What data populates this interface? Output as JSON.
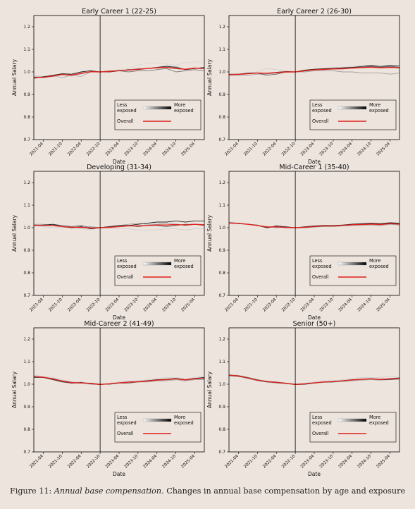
{
  "figure": {
    "caption_label": "Figure 11:",
    "caption_title": "Annual base compensation.",
    "caption_text": "Changes in annual base compensation by age and exposure"
  },
  "legend": {
    "less_line1": "Less",
    "less_line2": "exposed",
    "more_line1": "More",
    "more_line2": "exposed",
    "overall": "Overall",
    "gradient_from": "#ffffff",
    "gradient_to": "#000000",
    "overall_color": "#e0201b"
  },
  "chart_data": [
    {
      "type": "line",
      "title": "Early Career 1 (22-25)",
      "xlabel": "Date",
      "ylabel": "Annual Salary",
      "yticks": [
        "0.7",
        "0.8",
        "0.9",
        "1.0",
        "1.1",
        "1.2"
      ],
      "ylim": [
        0.7,
        1.25
      ],
      "xticks": [
        "2021-04",
        "2021-10",
        "2022-04",
        "2022-10",
        "2023-04",
        "2023-10",
        "2024-04",
        "2024-10",
        "2025-04"
      ],
      "x": [
        "2021-01",
        "2021-04",
        "2021-07",
        "2021-10",
        "2022-01",
        "2022-04",
        "2022-07",
        "2022-10",
        "2023-01",
        "2023-04",
        "2023-07",
        "2023-10",
        "2024-01",
        "2024-04",
        "2024-07",
        "2024-10",
        "2025-01",
        "2025-04",
        "2025-07"
      ],
      "vline": "2022-10",
      "series": [
        {
          "color": "#d8d8d8",
          "values": [
            0.985,
            0.978,
            0.985,
            0.99,
            0.98,
            0.99,
            1.0,
            1.0,
            1.005,
            1.01,
            1.015,
            1.03,
            1.04,
            1.04,
            1.035,
            1.03,
            1.04,
            1.045,
            1.04
          ]
        },
        {
          "color": "#b0b0b0",
          "values": [
            0.978,
            0.98,
            0.982,
            0.975,
            0.985,
            0.98,
            1.0,
            1.0,
            1.0,
            1.005,
            1.01,
            1.015,
            1.015,
            1.02,
            1.02,
            1.025,
            1.01,
            1.015,
            1.015
          ]
        },
        {
          "color": "#7a7a7a",
          "values": [
            0.975,
            0.975,
            0.98,
            0.99,
            0.985,
            0.995,
            1.0,
            1.0,
            1.005,
            1.005,
            1.0,
            1.005,
            1.005,
            1.01,
            1.015,
            1.0,
            1.005,
            1.01,
            1.005
          ]
        },
        {
          "color": "#202020",
          "values": [
            0.972,
            0.978,
            0.985,
            0.992,
            0.99,
            1.0,
            1.005,
            1.0,
            1.0,
            1.005,
            1.01,
            1.01,
            1.015,
            1.02,
            1.025,
            1.02,
            1.01,
            1.015,
            1.02
          ]
        },
        {
          "color": "#e0201b",
          "width": 1.4,
          "values": [
            0.975,
            0.976,
            0.982,
            0.988,
            0.986,
            0.993,
            1.001,
            1.0,
            1.002,
            1.006,
            1.008,
            1.012,
            1.015,
            1.018,
            1.02,
            1.015,
            1.012,
            1.017,
            1.015
          ]
        }
      ]
    },
    {
      "type": "line",
      "title": "Early Career 2 (26-30)",
      "xlabel": "Date",
      "ylabel": "Annual Salary",
      "yticks": [
        "0.7",
        "0.8",
        "0.9",
        "1.0",
        "1.1",
        "1.2"
      ],
      "ylim": [
        0.7,
        1.25
      ],
      "xticks": [
        "2021-04",
        "2021-10",
        "2022-04",
        "2022-10",
        "2023-04",
        "2023-10",
        "2024-04",
        "2024-10",
        "2025-04"
      ],
      "x": [
        "2021-01",
        "2021-04",
        "2021-07",
        "2021-10",
        "2022-01",
        "2022-04",
        "2022-07",
        "2022-10",
        "2023-01",
        "2023-04",
        "2023-07",
        "2023-10",
        "2024-01",
        "2024-04",
        "2024-07",
        "2024-10",
        "2025-01",
        "2025-04",
        "2025-07"
      ],
      "vline": "2022-10",
      "series": [
        {
          "color": "#d0d0d0",
          "values": [
            0.99,
            0.99,
            0.995,
            1.0,
            1.015,
            1.01,
            1.005,
            1.0,
            1.005,
            1.01,
            1.015,
            1.02,
            1.02,
            1.025,
            1.03,
            1.03,
            1.025,
            1.03,
            1.02
          ]
        },
        {
          "color": "#a0a0a0",
          "values": [
            0.985,
            0.985,
            0.985,
            0.99,
            0.99,
            0.995,
            0.998,
            1.0,
            1.0,
            1.005,
            1.005,
            1.005,
            1.0,
            1.0,
            0.995,
            0.995,
            0.995,
            0.99,
            0.995
          ]
        },
        {
          "color": "#606060",
          "values": [
            0.99,
            0.99,
            0.995,
            0.995,
            0.985,
            0.99,
            1.0,
            1.0,
            1.005,
            1.01,
            1.01,
            1.015,
            1.015,
            1.02,
            1.02,
            1.025,
            1.02,
            1.025,
            1.02
          ]
        },
        {
          "color": "#202020",
          "values": [
            0.988,
            0.99,
            0.993,
            0.995,
            0.993,
            0.998,
            1.002,
            1.0,
            1.008,
            1.012,
            1.014,
            1.016,
            1.018,
            1.02,
            1.024,
            1.028,
            1.024,
            1.028,
            1.026
          ]
        },
        {
          "color": "#e0201b",
          "width": 1.4,
          "values": [
            0.988,
            0.989,
            0.992,
            0.995,
            0.994,
            0.997,
            1.0,
            1.0,
            1.005,
            1.009,
            1.011,
            1.013,
            1.014,
            1.017,
            1.019,
            1.021,
            1.018,
            1.02,
            1.018
          ]
        }
      ]
    },
    {
      "type": "line",
      "title": "Developing (31-34)",
      "xlabel": "Date",
      "ylabel": "Annual Salary",
      "yticks": [
        "0.7",
        "0.8",
        "0.9",
        "1.0",
        "1.1",
        "1.2"
      ],
      "ylim": [
        0.7,
        1.25
      ],
      "xticks": [
        "2021-04",
        "2021-10",
        "2022-04",
        "2022-10",
        "2023-04",
        "2023-10",
        "2024-04",
        "2024-10",
        "2025-04"
      ],
      "x": [
        "2021-01",
        "2021-04",
        "2021-07",
        "2021-10",
        "2022-01",
        "2022-04",
        "2022-07",
        "2022-10",
        "2023-01",
        "2023-04",
        "2023-07",
        "2023-10",
        "2024-01",
        "2024-04",
        "2024-07",
        "2024-10",
        "2025-01",
        "2025-04",
        "2025-07"
      ],
      "vline": "2022-10",
      "series": [
        {
          "color": "#d0d0d0",
          "values": [
            1.01,
            1.005,
            1.0,
            1.0,
            1.005,
            0.995,
            0.99,
            1.0,
            0.995,
            0.995,
            0.995,
            0.99,
            0.99,
            0.99,
            0.995,
            0.995,
            0.99,
            0.995,
            0.995
          ]
        },
        {
          "color": "#a0a0a0",
          "values": [
            1.015,
            1.015,
            1.01,
            1.005,
            1.0,
            1.0,
            1.005,
            1.0,
            1.005,
            1.01,
            1.015,
            1.02,
            1.015,
            1.015,
            1.02,
            1.015,
            1.01,
            1.015,
            1.01
          ]
        },
        {
          "color": "#606060",
          "values": [
            1.01,
            1.01,
            1.015,
            1.01,
            1.005,
            1.01,
            1.0,
            1.0,
            1.005,
            1.005,
            1.01,
            1.005,
            1.01,
            1.01,
            1.005,
            1.01,
            1.015,
            1.015,
            1.01
          ]
        },
        {
          "color": "#202020",
          "values": [
            1.01,
            1.012,
            1.015,
            1.005,
            1.0,
            1.005,
            0.995,
            1.0,
            1.005,
            1.01,
            1.01,
            1.015,
            1.02,
            1.025,
            1.025,
            1.03,
            1.025,
            1.03,
            1.03
          ]
        },
        {
          "color": "#e0201b",
          "width": 1.4,
          "values": [
            1.011,
            1.01,
            1.01,
            1.005,
            1.002,
            1.002,
            0.998,
            1.0,
            1.002,
            1.005,
            1.008,
            1.008,
            1.01,
            1.012,
            1.012,
            1.014,
            1.012,
            1.015,
            1.013
          ]
        }
      ]
    },
    {
      "type": "line",
      "title": "Mid-Career 1 (35-40)",
      "xlabel": "Date",
      "ylabel": "Annual Salary",
      "yticks": [
        "0.7",
        "0.8",
        "0.9",
        "1.0",
        "1.1",
        "1.2"
      ],
      "ylim": [
        0.7,
        1.25
      ],
      "xticks": [
        "2021-04",
        "2021-10",
        "2022-04",
        "2022-10",
        "2023-04",
        "2023-10",
        "2024-04",
        "2024-10",
        "2025-04"
      ],
      "x": [
        "2021-01",
        "2021-04",
        "2021-07",
        "2021-10",
        "2022-01",
        "2022-04",
        "2022-07",
        "2022-10",
        "2023-01",
        "2023-04",
        "2023-07",
        "2023-10",
        "2024-01",
        "2024-04",
        "2024-07",
        "2024-10",
        "2025-01",
        "2025-04",
        "2025-07"
      ],
      "vline": "2022-10",
      "series": [
        {
          "color": "#d0d0d0",
          "values": [
            1.025,
            1.02,
            1.015,
            1.01,
            1.005,
            1.005,
            1.0,
            1.0,
            1.0,
            1.005,
            1.005,
            1.01,
            1.01,
            1.01,
            1.01,
            1.015,
            1.015,
            1.02,
            1.015
          ]
        },
        {
          "color": "#a0a0a0",
          "values": [
            1.02,
            1.018,
            1.015,
            1.01,
            1.005,
            1.0,
            1.002,
            1.0,
            1.0,
            1.003,
            1.005,
            1.005,
            1.008,
            1.01,
            1.012,
            1.012,
            1.01,
            1.015,
            1.012
          ]
        },
        {
          "color": "#606060",
          "values": [
            1.02,
            1.02,
            1.015,
            1.012,
            1.0,
            1.005,
            1.0,
            1.0,
            1.002,
            1.005,
            1.01,
            1.008,
            1.01,
            1.015,
            1.015,
            1.018,
            1.015,
            1.02,
            1.02
          ]
        },
        {
          "color": "#202020",
          "values": [
            1.022,
            1.02,
            1.016,
            1.01,
            1.0,
            1.008,
            1.004,
            1.0,
            1.004,
            1.008,
            1.01,
            1.01,
            1.012,
            1.016,
            1.018,
            1.02,
            1.018,
            1.022,
            1.02
          ]
        },
        {
          "color": "#e0201b",
          "width": 1.4,
          "values": [
            1.021,
            1.019,
            1.015,
            1.01,
            1.003,
            1.004,
            1.001,
            1.0,
            1.002,
            1.005,
            1.008,
            1.008,
            1.01,
            1.013,
            1.014,
            1.016,
            1.014,
            1.018,
            1.016
          ]
        }
      ]
    },
    {
      "type": "line",
      "title": "Mid-Career 2 (41-49)",
      "xlabel": "Date",
      "ylabel": "Annual Salary",
      "yticks": [
        "0.7",
        "0.8",
        "0.9",
        "1.0",
        "1.1",
        "1.2"
      ],
      "ylim": [
        0.7,
        1.25
      ],
      "xticks": [
        "2021-04",
        "2021-10",
        "2022-04",
        "2022-10",
        "2023-04",
        "2023-10",
        "2024-04",
        "2024-10",
        "2025-04"
      ],
      "x": [
        "2021-01",
        "2021-04",
        "2021-07",
        "2021-10",
        "2022-01",
        "2022-04",
        "2022-07",
        "2022-10",
        "2023-01",
        "2023-04",
        "2023-07",
        "2023-10",
        "2024-01",
        "2024-04",
        "2024-07",
        "2024-10",
        "2025-01",
        "2025-04",
        "2025-07"
      ],
      "vline": "2022-10",
      "series": [
        {
          "color": "#d0d0d0",
          "values": [
            1.04,
            1.035,
            1.03,
            1.02,
            1.01,
            1.01,
            1.005,
            1.0,
            1.005,
            1.01,
            1.015,
            1.015,
            1.02,
            1.025,
            1.03,
            1.03,
            1.025,
            1.03,
            1.035
          ]
        },
        {
          "color": "#a0a0a0",
          "values": [
            1.035,
            1.03,
            1.025,
            1.015,
            1.01,
            1.005,
            1.0,
            1.0,
            1.0,
            1.005,
            1.01,
            1.01,
            1.01,
            1.015,
            1.015,
            1.02,
            1.015,
            1.02,
            1.02
          ]
        },
        {
          "color": "#606060",
          "values": [
            1.03,
            1.03,
            1.02,
            1.01,
            1.005,
            1.005,
            1.005,
            1.0,
            1.0,
            1.005,
            1.005,
            1.01,
            1.015,
            1.02,
            1.02,
            1.025,
            1.02,
            1.025,
            1.03
          ]
        },
        {
          "color": "#202020",
          "values": [
            1.032,
            1.03,
            1.022,
            1.012,
            1.005,
            1.008,
            1.002,
            0.998,
            1.002,
            1.006,
            1.01,
            1.012,
            1.016,
            1.02,
            1.022,
            1.026,
            1.02,
            1.026,
            1.03
          ]
        },
        {
          "color": "#e0201b",
          "width": 1.4,
          "values": [
            1.034,
            1.031,
            1.024,
            1.014,
            1.007,
            1.006,
            1.003,
            0.999,
            1.002,
            1.006,
            1.009,
            1.011,
            1.014,
            1.018,
            1.02,
            1.024,
            1.019,
            1.024,
            1.027
          ]
        }
      ]
    },
    {
      "type": "line",
      "title": "Senior (50+)",
      "xlabel": "Date",
      "ylabel": "Annual Salary",
      "yticks": [
        "0.7",
        "0.8",
        "0.9",
        "1.0",
        "1.1",
        "1.2"
      ],
      "ylim": [
        0.7,
        1.25
      ],
      "xticks": [
        "2021-04",
        "2021-10",
        "2022-04",
        "2022-10",
        "2023-04",
        "2023-10",
        "2024-04",
        "2024-10",
        "2025-04"
      ],
      "x": [
        "2021-01",
        "2021-04",
        "2021-07",
        "2021-10",
        "2022-01",
        "2022-04",
        "2022-07",
        "2022-10",
        "2023-01",
        "2023-04",
        "2023-07",
        "2023-10",
        "2024-01",
        "2024-04",
        "2024-07",
        "2024-10",
        "2025-01",
        "2025-04",
        "2025-07"
      ],
      "vline": "2022-10",
      "series": [
        {
          "color": "#d0d0d0",
          "values": [
            1.045,
            1.04,
            1.03,
            1.02,
            1.015,
            1.01,
            1.005,
            1.0,
            1.005,
            1.01,
            1.015,
            1.015,
            1.02,
            1.025,
            1.03,
            1.03,
            1.03,
            1.035,
            1.03
          ]
        },
        {
          "color": "#a0a0a0",
          "values": [
            1.04,
            1.035,
            1.025,
            1.015,
            1.01,
            1.005,
            1.002,
            1.0,
            1.0,
            1.005,
            1.008,
            1.01,
            1.012,
            1.015,
            1.018,
            1.02,
            1.018,
            1.02,
            1.022
          ]
        },
        {
          "color": "#606060",
          "values": [
            1.04,
            1.038,
            1.03,
            1.02,
            1.012,
            1.01,
            1.005,
            1.0,
            1.002,
            1.006,
            1.01,
            1.012,
            1.015,
            1.02,
            1.022,
            1.025,
            1.022,
            1.025,
            1.028
          ]
        },
        {
          "color": "#202020",
          "values": [
            1.038,
            1.035,
            1.028,
            1.018,
            1.01,
            1.008,
            1.004,
            0.998,
            1.0,
            1.005,
            1.01,
            1.01,
            1.016,
            1.02,
            1.022,
            1.024,
            1.02,
            1.022,
            1.025
          ]
        },
        {
          "color": "#e0201b",
          "width": 1.4,
          "values": [
            1.04,
            1.037,
            1.028,
            1.018,
            1.012,
            1.008,
            1.004,
            0.999,
            1.002,
            1.006,
            1.01,
            1.012,
            1.015,
            1.019,
            1.022,
            1.024,
            1.021,
            1.024,
            1.026
          ]
        }
      ]
    }
  ]
}
